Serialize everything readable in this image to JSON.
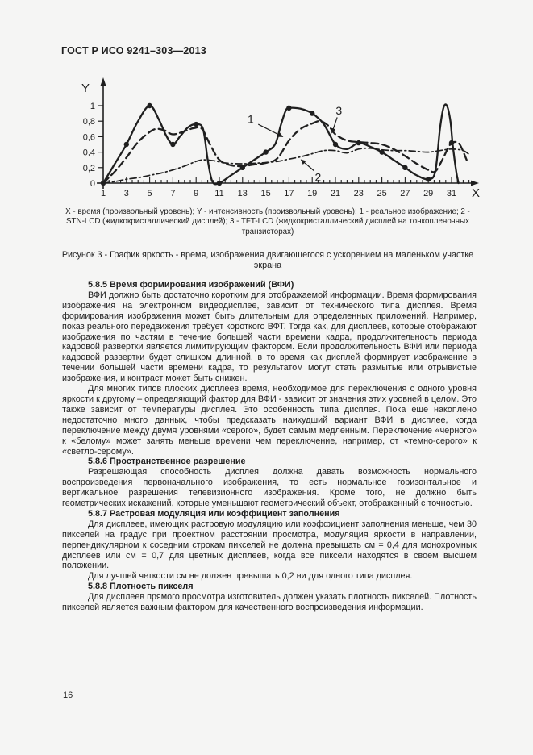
{
  "colors": {
    "page_bg": "#f5f5f4",
    "ink": "#1f1f1f"
  },
  "header": {
    "title": "ГОСТ Р ИСО 9241–303—2013"
  },
  "figure": {
    "caption": "X - время (произвольный уровень); Y - интенсивность (произвольный уровень); 1 - реальное изображение; 2 - STN-LCD (жидкокристаллический дисплей); 3 - TFT-LCD (жидкокристаллический дисплей на тонкопленочных транзисторах)",
    "title": "Рисунок 3 - График яркость - время, изображения двигающегося с ускорением на маленьком участке экрана"
  },
  "chart_data": {
    "type": "line",
    "title": "",
    "xlabel": "X",
    "ylabel": "Y",
    "xlim": [
      1,
      32.5
    ],
    "ylim": [
      0,
      1
    ],
    "grid": false,
    "legend": "none",
    "x_ticks": [
      1,
      3,
      5,
      7,
      9,
      11,
      13,
      15,
      17,
      19,
      21,
      23,
      25,
      27,
      29,
      31
    ],
    "y_ticks": [
      {
        "v": 0,
        "label": "0"
      },
      {
        "v": 0.2,
        "label": "0,2"
      },
      {
        "v": 0.4,
        "label": "0,4"
      },
      {
        "v": 0.6,
        "label": "0,6"
      },
      {
        "v": 0.8,
        "label": "0,8"
      },
      {
        "v": 1,
        "label": "1"
      }
    ],
    "series": [
      {
        "name": "1 - реальное изображение",
        "line": "solid",
        "markers": true,
        "points": [
          [
            1,
            0
          ],
          [
            2,
            0.25
          ],
          [
            3,
            0.5
          ],
          [
            4,
            0.8
          ],
          [
            5,
            1
          ],
          [
            5.8,
            0.82
          ],
          [
            6.4,
            0.62
          ],
          [
            7,
            0.5
          ],
          [
            7.6,
            0.6
          ],
          [
            8.3,
            0.72
          ],
          [
            9,
            0.76
          ],
          [
            9.6,
            0.7
          ],
          [
            10,
            0.3
          ],
          [
            10.4,
            0.02
          ],
          [
            11,
            0
          ],
          [
            12,
            0.1
          ],
          [
            13,
            0.2
          ],
          [
            14,
            0.3
          ],
          [
            15,
            0.4
          ],
          [
            15.8,
            0.5
          ],
          [
            16.3,
            0.75
          ],
          [
            16.7,
            0.93
          ],
          [
            17,
            0.97
          ],
          [
            18,
            0.96
          ],
          [
            19,
            0.9
          ],
          [
            20,
            0.76
          ],
          [
            21,
            0.5
          ],
          [
            22,
            0.44
          ],
          [
            23,
            0.52
          ],
          [
            24,
            0.47
          ],
          [
            25,
            0.4
          ],
          [
            26,
            0.3
          ],
          [
            27,
            0.2
          ],
          [
            28,
            0.1
          ],
          [
            29,
            0.05
          ],
          [
            29.6,
            0.15
          ],
          [
            30,
            0.7
          ],
          [
            30.3,
            0.97
          ],
          [
            30.6,
            1
          ],
          [
            30.9,
            0.8
          ],
          [
            31.1,
            0.5
          ],
          [
            31.4,
            0.15
          ],
          [
            31.6,
            0
          ]
        ],
        "marker_points": [
          [
            1,
            0
          ],
          [
            3,
            0.5
          ],
          [
            5,
            1
          ],
          [
            7,
            0.5
          ],
          [
            9,
            0.76
          ],
          [
            11,
            0
          ],
          [
            13,
            0.2
          ],
          [
            15,
            0.4
          ],
          [
            17,
            0.97
          ],
          [
            19,
            0.9
          ],
          [
            21,
            0.5
          ],
          [
            23,
            0.52
          ],
          [
            25,
            0.4
          ],
          [
            27,
            0.2
          ],
          [
            29,
            0.05
          ],
          [
            31,
            0.52
          ]
        ]
      },
      {
        "name": "2 - STN-LCD (жидкокристаллический дисплей)",
        "line": "dashdot",
        "markers": false,
        "points": [
          [
            1,
            0
          ],
          [
            2,
            0.02
          ],
          [
            3,
            0.05
          ],
          [
            4,
            0.07
          ],
          [
            5,
            0.1
          ],
          [
            6,
            0.13
          ],
          [
            7,
            0.17
          ],
          [
            8,
            0.22
          ],
          [
            9,
            0.28
          ],
          [
            9.6,
            0.3
          ],
          [
            10.5,
            0.29
          ],
          [
            11.5,
            0.26
          ],
          [
            13,
            0.25
          ],
          [
            14.5,
            0.26
          ],
          [
            16,
            0.28
          ],
          [
            17,
            0.31
          ],
          [
            18,
            0.34
          ],
          [
            19,
            0.38
          ],
          [
            20,
            0.42
          ],
          [
            21,
            0.42
          ],
          [
            22,
            0.39
          ],
          [
            23,
            0.44
          ],
          [
            24,
            0.45
          ],
          [
            25,
            0.43
          ],
          [
            26,
            0.42
          ],
          [
            27,
            0.42
          ],
          [
            28,
            0.41
          ],
          [
            29,
            0.4
          ],
          [
            30,
            0.42
          ],
          [
            31,
            0.44
          ],
          [
            32,
            0.42
          ],
          [
            32.6,
            0.36
          ]
        ]
      },
      {
        "name": "3 - TFT-LCD (жидкокристаллический дисплей на тонкопленочных транзисторах)",
        "line": "dashed",
        "markers": false,
        "points": [
          [
            1,
            0
          ],
          [
            2,
            0.15
          ],
          [
            3,
            0.33
          ],
          [
            4,
            0.53
          ],
          [
            5,
            0.66
          ],
          [
            5.6,
            0.7
          ],
          [
            6.3,
            0.68
          ],
          [
            7,
            0.63
          ],
          [
            8,
            0.67
          ],
          [
            8.8,
            0.71
          ],
          [
            9.5,
            0.7
          ],
          [
            10.2,
            0.5
          ],
          [
            11,
            0.3
          ],
          [
            12,
            0.23
          ],
          [
            13,
            0.22
          ],
          [
            14,
            0.24
          ],
          [
            15,
            0.26
          ],
          [
            16,
            0.32
          ],
          [
            17,
            0.55
          ],
          [
            18,
            0.7
          ],
          [
            19,
            0.77
          ],
          [
            19.7,
            0.8
          ],
          [
            20.4,
            0.74
          ],
          [
            21,
            0.63
          ],
          [
            22,
            0.55
          ],
          [
            23,
            0.53
          ],
          [
            24,
            0.52
          ],
          [
            25,
            0.5
          ],
          [
            26,
            0.44
          ],
          [
            27,
            0.35
          ],
          [
            28,
            0.25
          ],
          [
            29,
            0.17
          ],
          [
            29.6,
            0.15
          ],
          [
            30.2,
            0.3
          ],
          [
            30.8,
            0.48
          ],
          [
            31.2,
            0.53
          ],
          [
            31.7,
            0.5
          ],
          [
            32.3,
            0.3
          ]
        ]
      }
    ],
    "annotations": [
      {
        "text": "1",
        "tx": 13.7,
        "ty": 0.83,
        "ax1": 14.35,
        "ay1": 0.76,
        "ax2": 16.45,
        "ay2": 0.6
      },
      {
        "text": "2",
        "tx": 19.5,
        "ty": 0.08,
        "ax1": 19.15,
        "ay1": 0.16,
        "ax2": 18.05,
        "ay2": 0.3
      },
      {
        "text": "3",
        "tx": 21.3,
        "ty": 0.94,
        "ax1": 21.15,
        "ay1": 0.85,
        "ax2": 20.7,
        "ay2": 0.65
      }
    ]
  },
  "sections": [
    {
      "heading": "5.8.5 Время формирования изображений (ВФИ)",
      "paragraphs": [
        "ВФИ должно быть достаточно коротким для отображаемой информации. Время формирования изображения на электронном видеодисплее, зависит от технического типа дисплея. Время формирования изображения может быть длительным для определенных приложений. Например, показ реального передвижения требует короткого ВФТ. Тогда как, для дисплеев, которые отображают изображения по частям в течение большей части времени кадра, продолжительность периода кадровой развертки является лимитирующим фактором. Если продолжительность ВФИ или периода кадровой развертки будет слишком длинной, в то время как дисплей формирует изображение в течении большей части времени кадра, то результатом могут стать размытые или отрывистые изображения, и контраст может быть снижен.",
        "Для многих типов плоских дисплеев время, необходимое для переключения с одного уровня яркости к другому – определяющий фактор для ВФИ - зависит от значения этих уровней в целом. Это также зависит от температуры дисплея. Это особенность типа дисплея. Пока еще накоплено недостаточно много данных, чтобы предсказать наихудший вариант ВФИ в дисплее, когда переключение между двумя уровнями «серого», будет самым медленным. Переключение «черного» к «белому» может занять меньше времени чем переключение, например, от «темно-серого» к «светло-серому»."
      ]
    },
    {
      "heading": "5.8.6 Пространственное разрешение",
      "paragraphs": [
        "Разрешающая способность дисплея должна давать возможность нормального воспроизведения первоначального изображения, то есть нормальное горизонтальное и вертикальное разрешения телевизионного изображения. Кроме того, не должно быть геометрических искажений, которые уменьшают геометрический объект, отображенный с точностью."
      ]
    },
    {
      "heading": "5.8.7 Растровая модуляция или коэффициент заполнения",
      "paragraphs": [
        "Для дисплеев, имеющих растровую модуляцию или коэффициент заполнения меньше, чем 30 пикселей на градус при проектном расстоянии просмотра, модуляция яркости в направлении, перпендикулярном к соседним строкам пикселей не должна превышать см = 0,4 для монохромных дисплеев или см = 0,7 для цветных дисплеев, когда все пиксели находятся в своем высшем положении.",
        "Для лучшей четкости см не должен превышать 0,2 ни для одного типа дисплея."
      ]
    },
    {
      "heading": "5.8.8 Плотность пикселя",
      "paragraphs": [
        "Для дисплеев прямого просмотра изготовитель должен указать плотность пикселей. Плотность пикселей является важным фактором для качественного воспроизведения информации."
      ]
    }
  ],
  "footer": {
    "page_number": "16"
  }
}
